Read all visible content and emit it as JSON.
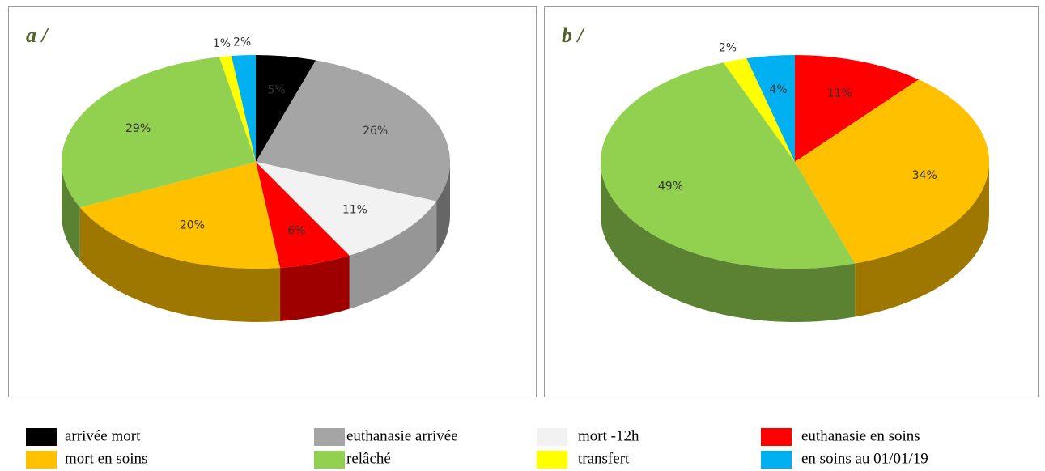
{
  "chart_data": [
    {
      "type": "pie",
      "title": "a /",
      "categories": [
        "arrivée mort",
        "euthanasie arrivée",
        "mort -12h",
        "euthanasie en soins",
        "mort en soins",
        "relâché",
        "transfert",
        "en soins au 01/01/19"
      ],
      "values": [
        5,
        26,
        11,
        6,
        20,
        29,
        1,
        2
      ],
      "value_labels": [
        "5%",
        "26%",
        "11%",
        "6%",
        "20%",
        "29%",
        "1%",
        "2%"
      ],
      "colors": [
        "#000000",
        "#a5a5a5",
        "#f2f2f2",
        "#ff0000",
        "#ffc000",
        "#92d050",
        "#ffff00",
        "#00b0f0"
      ]
    },
    {
      "type": "pie",
      "title": "b /",
      "categories": [
        "euthanasie en soins",
        "mort en soins",
        "relâché",
        "transfert",
        "en soins au 01/01/19"
      ],
      "values": [
        11,
        34,
        49,
        2,
        4
      ],
      "value_labels": [
        "11%",
        "34%",
        "49%",
        "2%",
        "4%"
      ],
      "colors": [
        "#ff0000",
        "#ffc000",
        "#92d050",
        "#ffff00",
        "#00b0f0"
      ]
    }
  ],
  "legend": {
    "items": [
      {
        "name": "arrivée mort",
        "color": "#000000"
      },
      {
        "name": "euthanasie arrivée",
        "color": "#a5a5a5"
      },
      {
        "name": "mort -12h",
        "color": "#f2f2f2"
      },
      {
        "name": "euthanasie en soins",
        "color": "#ff0000"
      },
      {
        "name": "mort en soins",
        "color": "#ffc000"
      },
      {
        "name": "relâché",
        "color": "#92d050"
      },
      {
        "name": "transfert",
        "color": "#ffff00"
      },
      {
        "name": "en soins au 01/01/19",
        "color": "#00b0f0"
      }
    ]
  }
}
